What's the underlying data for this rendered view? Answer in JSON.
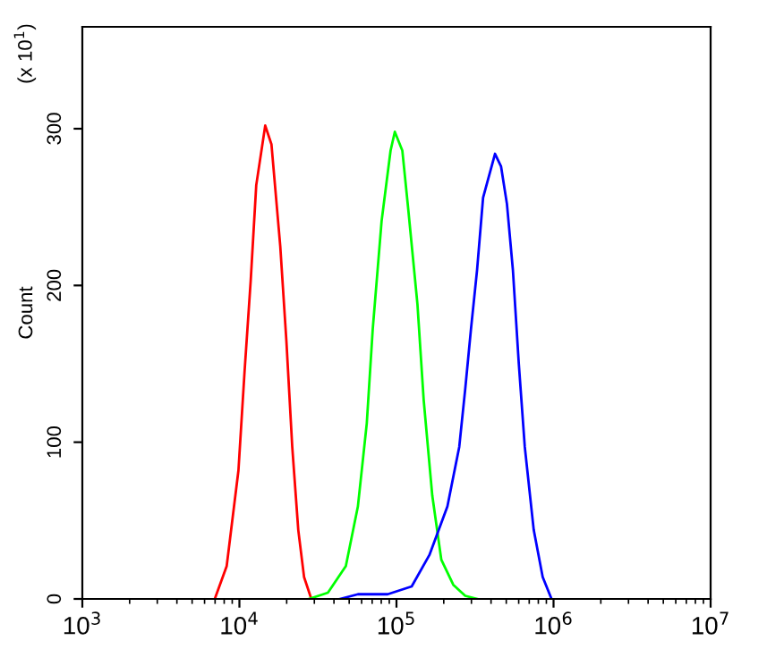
{
  "chart_data": {
    "type": "line",
    "ylabel": "Count",
    "annotations": [
      "(x 10$^{1}$)"
    ],
    "log": "x",
    "grid": false,
    "marker": "none",
    "line_style": "solid",
    "xlim": [
      1000,
      10000000
    ],
    "ylim": [
      0,
      365
    ],
    "xticks": [
      {
        "value": 1000,
        "label": "10$^{3}$"
      },
      {
        "value": 10000,
        "label": "10$^{4}$"
      },
      {
        "value": 100000,
        "label": "10$^{5}$"
      },
      {
        "value": 1000000,
        "label": "10$^{6}$"
      },
      {
        "value": 10000000,
        "label": "10$^{7}$"
      }
    ],
    "yticks": [
      0,
      100,
      200,
      300
    ],
    "series": [
      {
        "color": "#ff0000",
        "x": [
          6970,
          8300,
          9860,
          10800,
          11800,
          12800,
          14600,
          16000,
          18200,
          19900,
          21700,
          23700,
          25800,
          28700
        ],
        "values": [
          0,
          21,
          82,
          146,
          203,
          264,
          302,
          290,
          225,
          165,
          97,
          44,
          14,
          0
        ]
      },
      {
        "color": "#00ff00",
        "x": [
          27700,
          36600,
          47600,
          56800,
          64700,
          70600,
          80400,
          91700,
          97600,
          109000,
          119000,
          136000,
          149000,
          169000,
          193000,
          230000,
          274000,
          326000
        ],
        "values": [
          0,
          4,
          21,
          59,
          112,
          172,
          241,
          286,
          298,
          286,
          248,
          188,
          127,
          66,
          25,
          9,
          2,
          0
        ]
      },
      {
        "color": "#0000ff",
        "x": [
          43700,
          56800,
          87900,
          125000,
          162000,
          211000,
          251000,
          274000,
          298000,
          326000,
          356000,
          424000,
          463000,
          505000,
          551000,
          601000,
          656000,
          748000,
          853000,
          971000
        ],
        "values": [
          0,
          3,
          3,
          8,
          28,
          59,
          97,
          134,
          172,
          210,
          256,
          284,
          276,
          252,
          210,
          150,
          97,
          44,
          14,
          0
        ]
      }
    ]
  }
}
